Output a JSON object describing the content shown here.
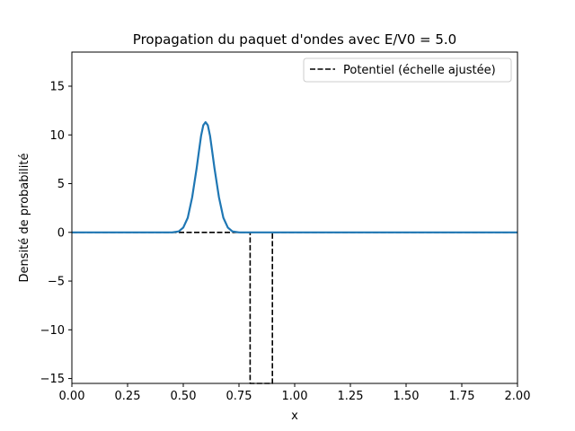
{
  "chart_data": {
    "type": "line",
    "title": "Propagation du paquet d'ondes avec E/V0 = 5.0",
    "xlabel": "x",
    "ylabel": "Densité de probabilité",
    "xlim": [
      0.0,
      2.0
    ],
    "ylim": [
      -15.5,
      18.5
    ],
    "x_ticks": [
      0.0,
      0.25,
      0.5,
      0.75,
      1.0,
      1.25,
      1.5,
      1.75,
      2.0
    ],
    "x_tick_labels": [
      "0.00",
      "0.25",
      "0.50",
      "0.75",
      "1.00",
      "1.25",
      "1.50",
      "1.75",
      "2.00"
    ],
    "y_ticks": [
      -15,
      -10,
      -5,
      0,
      5,
      10,
      15
    ],
    "y_tick_labels": [
      "−15",
      "−10",
      "−5",
      "0",
      "5",
      "10",
      "15"
    ],
    "grid": false,
    "legend_position": "top-right",
    "series": [
      {
        "color": "#1f77b4",
        "style": "solid",
        "x": [
          0.0,
          0.45,
          0.48,
          0.5,
          0.52,
          0.54,
          0.56,
          0.57,
          0.58,
          0.59,
          0.6,
          0.61,
          0.62,
          0.63,
          0.64,
          0.66,
          0.68,
          0.7,
          0.72,
          0.75,
          2.0
        ],
        "y": [
          0.0,
          0.0,
          0.1,
          0.5,
          1.5,
          3.6,
          6.6,
          8.3,
          9.9,
          11.0,
          11.3,
          11.0,
          9.9,
          8.3,
          6.6,
          3.6,
          1.5,
          0.5,
          0.1,
          0.0,
          0.0
        ]
      },
      {
        "name": "Potentiel (échelle ajustée)",
        "color": "#000000",
        "style": "dashed",
        "x": [
          0.0,
          0.8,
          0.8,
          0.9,
          0.9,
          2.0
        ],
        "y": [
          0.0,
          0.0,
          -15.5,
          -15.5,
          0.0,
          0.0
        ]
      }
    ]
  }
}
